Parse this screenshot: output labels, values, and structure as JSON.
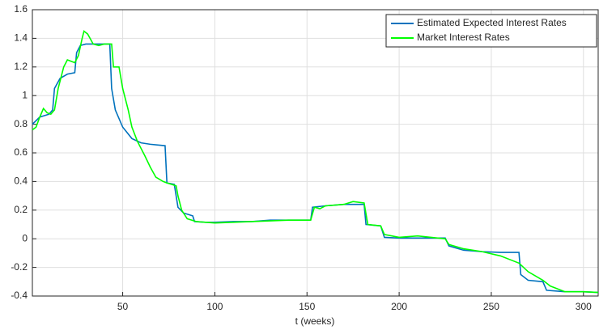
{
  "chart_data": {
    "type": "line",
    "xlabel": "t (weeks)",
    "xlim": [
      1,
      308
    ],
    "xticks": [
      50,
      100,
      150,
      200,
      250,
      300
    ],
    "ylim": [
      -0.4,
      1.6
    ],
    "yticks": [
      -0.4,
      -0.2,
      0,
      0.2,
      0.4,
      0.6,
      0.8,
      1,
      1.2,
      1.4,
      1.6
    ],
    "grid": true,
    "legend": "north-east",
    "series": [
      {
        "name": "Estimated Expected Interest Rates",
        "color": "#0072bd",
        "x": [
          1,
          5,
          10,
          12,
          13,
          16,
          20,
          24,
          25,
          27,
          30,
          40,
          43,
          44,
          46,
          50,
          55,
          60,
          65,
          73,
          74,
          78,
          80,
          83,
          88,
          89,
          95,
          100,
          110,
          120,
          130,
          140,
          152,
          153,
          160,
          170,
          181,
          182,
          190,
          192,
          200,
          210,
          225,
          227,
          235,
          245,
          255,
          265,
          266,
          270,
          278,
          280,
          290,
          300,
          308
        ],
        "values": [
          0.8,
          0.85,
          0.87,
          0.9,
          1.05,
          1.12,
          1.15,
          1.16,
          1.3,
          1.35,
          1.36,
          1.36,
          1.36,
          1.05,
          0.9,
          0.78,
          0.7,
          0.67,
          0.66,
          0.65,
          0.39,
          0.38,
          0.22,
          0.18,
          0.16,
          0.12,
          0.115,
          0.115,
          0.12,
          0.12,
          0.13,
          0.13,
          0.13,
          0.22,
          0.23,
          0.24,
          0.24,
          0.1,
          0.09,
          0.01,
          0.005,
          0.005,
          0.005,
          -0.05,
          -0.08,
          -0.09,
          -0.095,
          -0.095,
          -0.25,
          -0.29,
          -0.3,
          -0.36,
          -0.37,
          -0.37,
          -0.375
        ]
      },
      {
        "name": "Market Interest Rates",
        "color": "#00ff00",
        "x": [
          1,
          3,
          5,
          7,
          9,
          11,
          13,
          15,
          18,
          20,
          24,
          26,
          28,
          29,
          31,
          34,
          37,
          40,
          44,
          45,
          48,
          50,
          53,
          55,
          58,
          62,
          65,
          68,
          72,
          74,
          79,
          80,
          82,
          85,
          90,
          100,
          110,
          120,
          130,
          140,
          152,
          154,
          157,
          160,
          170,
          175,
          181,
          183,
          190,
          192,
          200,
          210,
          225,
          227,
          235,
          245,
          255,
          265,
          270,
          278,
          282,
          290,
          300,
          308
        ],
        "values": [
          0.76,
          0.78,
          0.85,
          0.91,
          0.88,
          0.87,
          0.9,
          1.05,
          1.2,
          1.25,
          1.23,
          1.28,
          1.4,
          1.45,
          1.43,
          1.36,
          1.35,
          1.36,
          1.36,
          1.2,
          1.2,
          1.05,
          0.9,
          0.78,
          0.68,
          0.58,
          0.5,
          0.43,
          0.4,
          0.39,
          0.37,
          0.3,
          0.2,
          0.14,
          0.12,
          0.11,
          0.115,
          0.12,
          0.125,
          0.13,
          0.13,
          0.22,
          0.21,
          0.23,
          0.24,
          0.26,
          0.25,
          0.1,
          0.09,
          0.03,
          0.01,
          0.02,
          0,
          -0.04,
          -0.07,
          -0.09,
          -0.12,
          -0.17,
          -0.23,
          -0.29,
          -0.33,
          -0.37,
          -0.37,
          -0.375
        ]
      }
    ]
  }
}
